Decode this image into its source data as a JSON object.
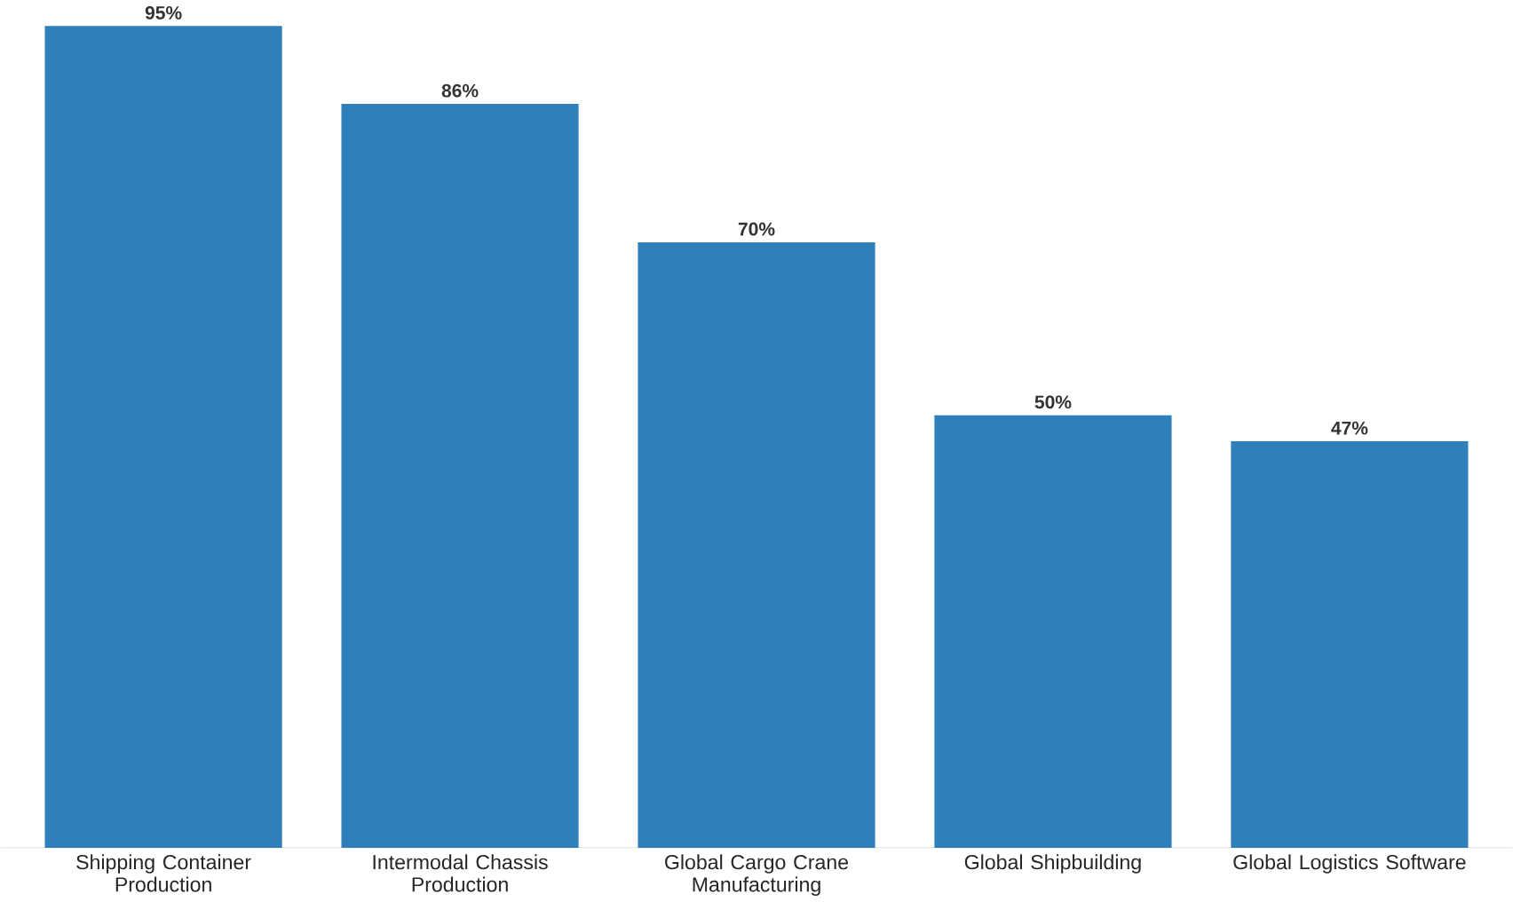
{
  "chart_data": {
    "type": "bar",
    "categories": [
      "Shipping Container Production",
      "Intermodal Chassis Production",
      "Global Cargo Crane Manufacturing",
      "Global Shipbuilding",
      "Global Logistics Software"
    ],
    "values": [
      95,
      86,
      70,
      50,
      47
    ],
    "value_labels": [
      "95%",
      "86%",
      "70%",
      "50%",
      "47%"
    ],
    "color": "#2f80ba"
  }
}
